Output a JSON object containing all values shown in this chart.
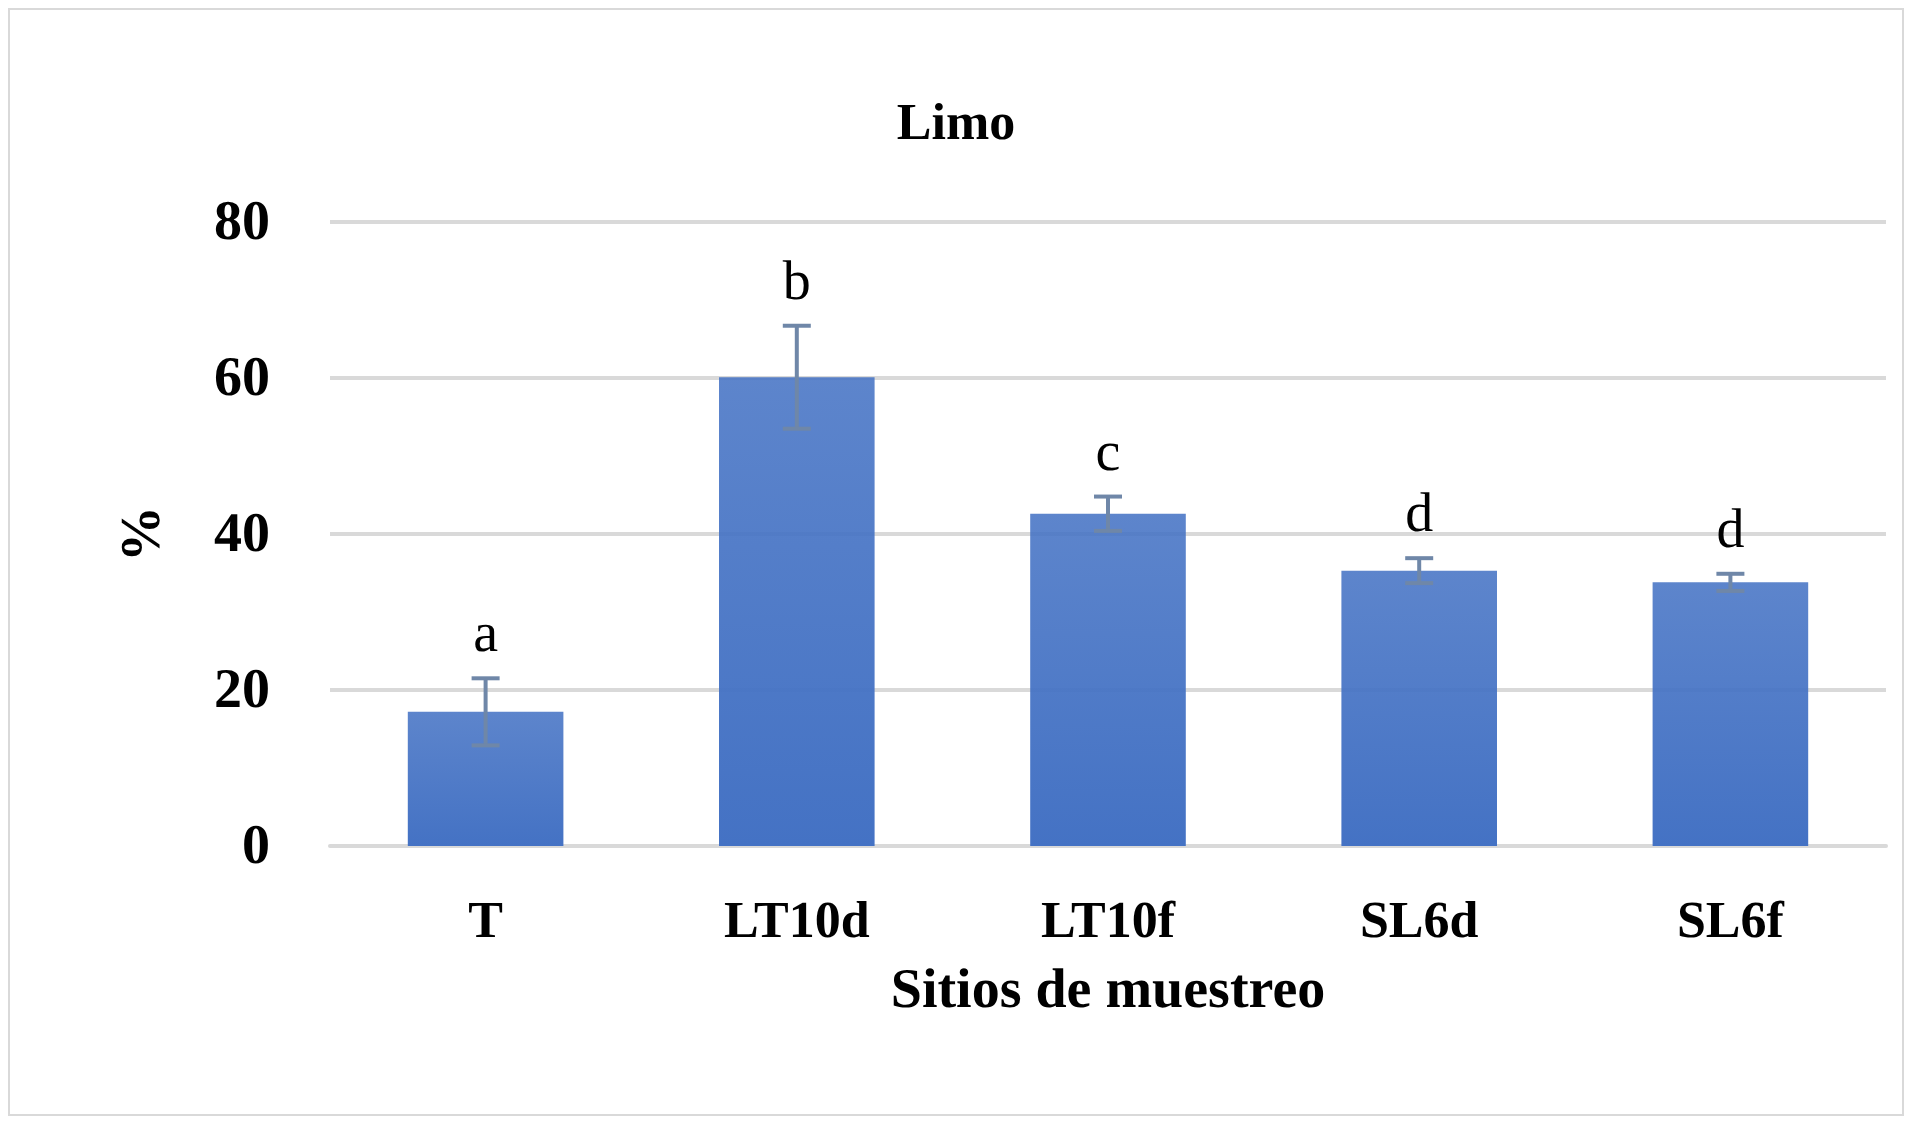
{
  "chart_data": {
    "type": "bar",
    "title": "Limo",
    "xlabel": "Sitios de muestreo",
    "ylabel": "%",
    "categories": [
      "T",
      "LT10d",
      "LT10f",
      "SL6d",
      "SL6f"
    ],
    "values": [
      17.2,
      60.1,
      42.6,
      35.3,
      33.8
    ],
    "errors": [
      4.3,
      6.6,
      2.2,
      1.6,
      1.1
    ],
    "color": "#4472c4",
    "ylim": [
      0,
      80
    ],
    "yticks": [
      0,
      20,
      40,
      60,
      80
    ],
    "grid": "y",
    "annotations": [
      "a",
      "b",
      "c",
      "d",
      "d"
    ]
  }
}
